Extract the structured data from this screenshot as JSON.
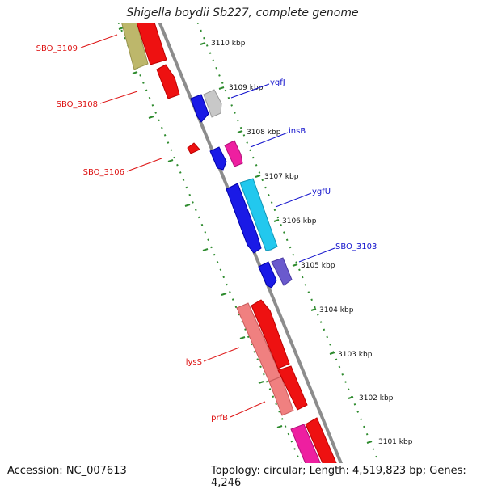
{
  "title": "Shigella boydii Sb227, complete genome",
  "accession_label": "Accession: NC_007613",
  "topology_label": "Topology: circular; Length: 4,519,823 bp; Genes: 4,246",
  "kbp_ticks": [
    "3110 kbp",
    "3109 kbp",
    "3108 kbp",
    "3107 kbp",
    "3106 kbp",
    "3105 kbp",
    "3104 kbp",
    "3103 kbp",
    "3102 kbp",
    "3101 kbp"
  ],
  "left_labels": [
    "SBO_3109",
    "SBO_3108",
    "SBO_3106",
    "lysS",
    "prfB"
  ],
  "right_labels": [
    "ygfJ",
    "insB",
    "ygfU",
    "SBO_3103"
  ],
  "colors": {
    "backbone": "#8c8c8c",
    "ruler_dots": "#2e8b2e",
    "left_label": "#dd1111",
    "right_label": "#1111cc",
    "gene_red": "#ee1111",
    "gene_blue": "#1a1ae6",
    "gene_gray": "#c8c8c8",
    "gene_magenta": "#ee1fa0",
    "gene_cyan": "#22c8ee",
    "gene_purple": "#6a5acd",
    "gene_salmon": "#f08080",
    "gene_khaki": "#bdb76b"
  }
}
